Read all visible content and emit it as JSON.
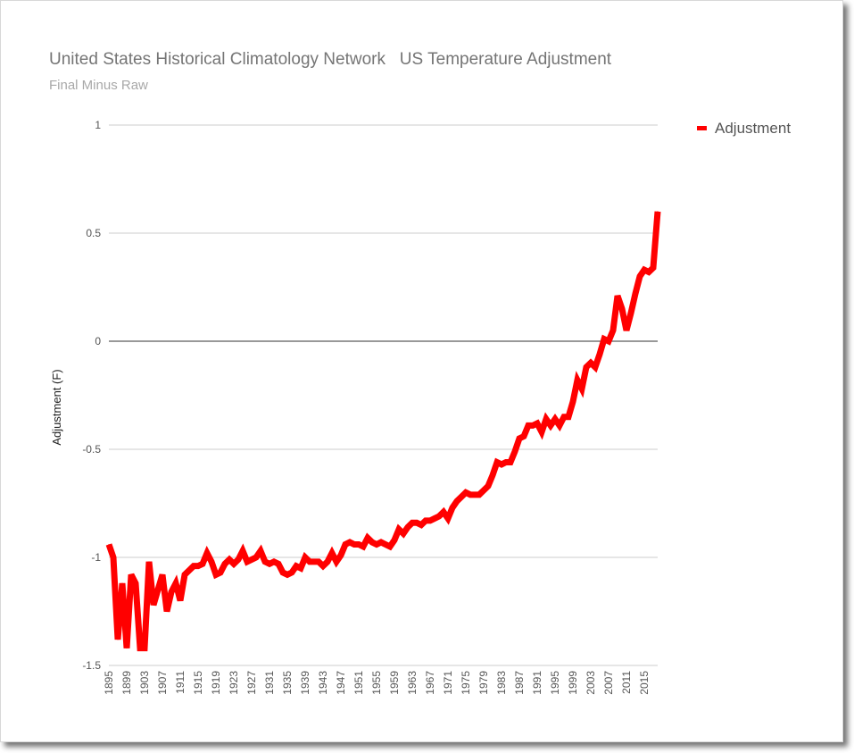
{
  "chart_data": {
    "type": "line",
    "title": "United States Historical Climatology Network   US Temperature Adjustment",
    "subtitle": "Final Minus Raw",
    "xlabel": "",
    "ylabel": "Adjustment (F)",
    "ylim": [
      -1.5,
      1
    ],
    "yticks": [
      "1",
      "0.5",
      "0",
      "-0.5",
      "-1",
      "-1.5"
    ],
    "ytick_values": [
      1,
      0.5,
      0,
      -0.5,
      -1,
      -1.5
    ],
    "xtick_labels": [
      "1895",
      "1899",
      "1903",
      "1907",
      "1911",
      "1915",
      "1919",
      "1923",
      "1927",
      "1931",
      "1935",
      "1939",
      "1943",
      "1947",
      "1951",
      "1955",
      "1959",
      "1963",
      "1967",
      "1971",
      "1975",
      "1979",
      "1983",
      "1987",
      "1991",
      "1995",
      "1999",
      "2003",
      "2007",
      "2011",
      "2015"
    ],
    "legend": {
      "position": "right",
      "entries": [
        "Adjustment"
      ]
    },
    "grid": true,
    "colors": {
      "series": "#ff0000",
      "grid": "#cccccc",
      "zero_line": "#333333"
    },
    "x": [
      1895,
      1896,
      1897,
      1898,
      1899,
      1900,
      1901,
      1902,
      1903,
      1904,
      1905,
      1906,
      1907,
      1908,
      1909,
      1910,
      1911,
      1912,
      1913,
      1914,
      1915,
      1916,
      1917,
      1918,
      1919,
      1920,
      1921,
      1922,
      1923,
      1924,
      1925,
      1926,
      1927,
      1928,
      1929,
      1930,
      1931,
      1932,
      1933,
      1934,
      1935,
      1936,
      1937,
      1938,
      1939,
      1940,
      1941,
      1942,
      1943,
      1944,
      1945,
      1946,
      1947,
      1948,
      1949,
      1950,
      1951,
      1952,
      1953,
      1954,
      1955,
      1956,
      1957,
      1958,
      1959,
      1960,
      1961,
      1962,
      1963,
      1964,
      1965,
      1966,
      1967,
      1968,
      1969,
      1970,
      1971,
      1972,
      1973,
      1974,
      1975,
      1976,
      1977,
      1978,
      1979,
      1980,
      1981,
      1982,
      1983,
      1984,
      1985,
      1986,
      1987,
      1988,
      1989,
      1990,
      1991,
      1992,
      1993,
      1994,
      1995,
      1996,
      1997,
      1998,
      1999,
      2000,
      2001,
      2002,
      2003,
      2004,
      2005,
      2006,
      2007,
      2008,
      2009,
      2010,
      2011,
      2012,
      2013,
      2014,
      2015,
      2016,
      2017,
      2018
    ],
    "series": [
      {
        "name": "Adjustment",
        "values": [
          -0.94,
          -1.0,
          -1.38,
          -1.12,
          -1.42,
          -1.08,
          -1.12,
          -1.42,
          -1.42,
          -1.02,
          -1.22,
          -1.15,
          -1.08,
          -1.25,
          -1.16,
          -1.12,
          -1.2,
          -1.08,
          -1.06,
          -1.04,
          -1.04,
          -1.03,
          -0.98,
          -1.02,
          -1.08,
          -1.07,
          -1.03,
          -1.01,
          -1.03,
          -1.01,
          -0.97,
          -1.02,
          -1.01,
          -1.0,
          -0.97,
          -1.02,
          -1.03,
          -1.02,
          -1.03,
          -1.07,
          -1.08,
          -1.07,
          -1.04,
          -1.05,
          -1.0,
          -1.02,
          -1.02,
          -1.02,
          -1.04,
          -1.02,
          -0.98,
          -1.02,
          -0.99,
          -0.94,
          -0.93,
          -0.94,
          -0.94,
          -0.95,
          -0.91,
          -0.93,
          -0.94,
          -0.93,
          -0.94,
          -0.95,
          -0.92,
          -0.87,
          -0.89,
          -0.86,
          -0.84,
          -0.84,
          -0.85,
          -0.83,
          -0.83,
          -0.82,
          -0.81,
          -0.79,
          -0.82,
          -0.77,
          -0.74,
          -0.72,
          -0.7,
          -0.71,
          -0.71,
          -0.71,
          -0.69,
          -0.67,
          -0.62,
          -0.56,
          -0.57,
          -0.56,
          -0.56,
          -0.51,
          -0.45,
          -0.44,
          -0.39,
          -0.39,
          -0.38,
          -0.42,
          -0.36,
          -0.39,
          -0.36,
          -0.39,
          -0.35,
          -0.35,
          -0.28,
          -0.18,
          -0.22,
          -0.12,
          -0.1,
          -0.12,
          -0.06,
          0.01,
          0.0,
          0.05,
          0.21,
          0.15,
          0.05,
          0.13,
          0.22,
          0.3,
          0.33,
          0.32,
          0.34,
          0.6
        ]
      }
    ]
  }
}
